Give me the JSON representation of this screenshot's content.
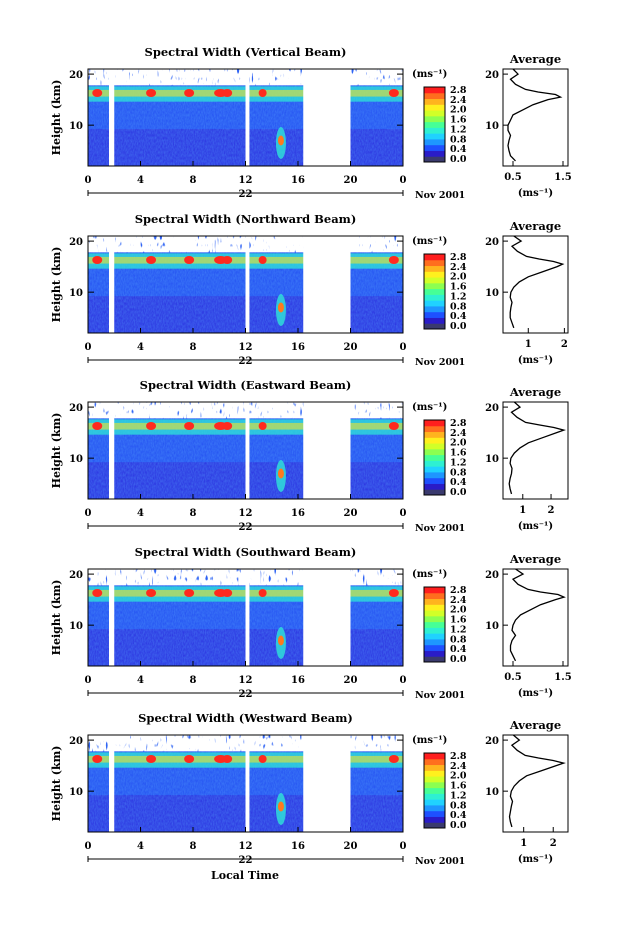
{
  "chart_data": {
    "type": "heatmap",
    "common": {
      "x_ticks": [
        "0",
        "4",
        "8",
        "12",
        "16",
        "20",
        "0"
      ],
      "x_range": [
        0,
        24
      ],
      "date_day": "22",
      "date_month_year": "Nov 2001",
      "xlabel": "Local Time",
      "ylabel": "Height (km)",
      "y_ticks": [
        "10",
        "20"
      ],
      "y_range": [
        2,
        21
      ],
      "colorbar_unit": "(ms⁻¹)",
      "colorbar_ticks": [
        "2.8",
        "2.4",
        "2.0",
        "1.6",
        "1.2",
        "0.8",
        "0.4",
        "0.0"
      ],
      "colorbar_colors": [
        "#3a3a6e",
        "#2a1cc8",
        "#1e50ff",
        "#1e96ff",
        "#20d2ff",
        "#2ef0d2",
        "#46ff96",
        "#8cff50",
        "#d2ff28",
        "#fff01e",
        "#ffb41e",
        "#ff6e1e",
        "#ff1e1e"
      ],
      "data_gaps_hours": [
        [
          1.6,
          2.0
        ],
        [
          12.0,
          12.3
        ],
        [
          16.4,
          20.0
        ]
      ],
      "avg_title": "Average",
      "avg_xlabel": "(ms⁻¹)",
      "avg_yticks": [
        "10",
        "20"
      ]
    },
    "panels": [
      {
        "title": "Spectral Width (Vertical Beam)",
        "avg_xticks": [
          {
            "v": 0.5,
            "label": "0.5"
          },
          {
            "v": 1.5,
            "label": "1.5"
          }
        ],
        "avg_xlim": [
          0.3,
          1.6
        ],
        "avg_profile": {
          "height_km": [
            3,
            4,
            5,
            6,
            7,
            8,
            9,
            10,
            11,
            12,
            13,
            14,
            15,
            15.5,
            16,
            16.5,
            17,
            18,
            19,
            20,
            21
          ],
          "width": [
            0.55,
            0.45,
            0.42,
            0.4,
            0.42,
            0.45,
            0.4,
            0.4,
            0.45,
            0.5,
            0.7,
            0.9,
            1.2,
            1.45,
            1.35,
            1.0,
            0.75,
            0.55,
            0.45,
            0.6,
            0.5
          ]
        }
      },
      {
        "title": "Spectral Width (Northward Beam)",
        "avg_xticks": [
          {
            "v": 1,
            "label": "1"
          },
          {
            "v": 2,
            "label": "2"
          }
        ],
        "avg_xlim": [
          0.3,
          2.1
        ],
        "avg_profile": {
          "height_km": [
            3,
            4,
            5,
            6,
            7,
            8,
            9,
            10,
            11,
            12,
            13,
            14,
            15,
            15.5,
            16,
            16.5,
            17,
            18,
            19,
            20,
            21
          ],
          "width": [
            0.6,
            0.55,
            0.5,
            0.5,
            0.52,
            0.55,
            0.5,
            0.52,
            0.6,
            0.75,
            1.0,
            1.4,
            1.8,
            1.95,
            1.7,
            1.3,
            0.95,
            0.7,
            0.55,
            0.8,
            0.6
          ]
        }
      },
      {
        "title": "Spectral Width (Eastward Beam)",
        "avg_xticks": [
          {
            "v": 1,
            "label": "1"
          },
          {
            "v": 2,
            "label": "2"
          }
        ],
        "avg_xlim": [
          0.3,
          2.6
        ],
        "avg_profile": {
          "height_km": [
            3,
            4,
            5,
            6,
            7,
            8,
            9,
            10,
            11,
            12,
            13,
            14,
            15,
            15.5,
            16,
            16.5,
            17,
            18,
            19,
            20,
            21
          ],
          "width": [
            0.6,
            0.55,
            0.52,
            0.55,
            0.6,
            0.62,
            0.55,
            0.58,
            0.7,
            0.9,
            1.2,
            1.7,
            2.2,
            2.45,
            2.1,
            1.6,
            1.1,
            0.8,
            0.6,
            0.9,
            0.7
          ]
        }
      },
      {
        "title": "Spectral Width (Southward Beam)",
        "avg_xticks": [
          {
            "v": 0.5,
            "label": "0.5"
          },
          {
            "v": 1.5,
            "label": "1.5"
          }
        ],
        "avg_xlim": [
          0.3,
          1.6
        ],
        "avg_profile": {
          "height_km": [
            3,
            4,
            5,
            6,
            7,
            8,
            9,
            10,
            11,
            12,
            13,
            14,
            15,
            15.5,
            16,
            16.5,
            17,
            18,
            19,
            20,
            21
          ],
          "width": [
            0.55,
            0.5,
            0.45,
            0.45,
            0.48,
            0.55,
            0.48,
            0.5,
            0.55,
            0.65,
            0.85,
            1.05,
            1.35,
            1.52,
            1.4,
            1.05,
            0.8,
            0.6,
            0.5,
            0.7,
            0.55
          ]
        }
      },
      {
        "title": "Spectral Width (Westward Beam)",
        "avg_xticks": [
          {
            "v": 1,
            "label": "1"
          },
          {
            "v": 2,
            "label": "2"
          }
        ],
        "avg_xlim": [
          0.3,
          2.5
        ],
        "avg_profile": {
          "height_km": [
            3,
            4,
            5,
            6,
            7,
            8,
            9,
            10,
            11,
            12,
            13,
            14,
            15,
            15.5,
            16,
            16.5,
            17,
            18,
            19,
            20,
            21
          ],
          "width": [
            0.6,
            0.55,
            0.52,
            0.55,
            0.58,
            0.62,
            0.55,
            0.58,
            0.68,
            0.85,
            1.1,
            1.6,
            2.1,
            2.35,
            2.0,
            1.5,
            1.05,
            0.78,
            0.6,
            0.85,
            0.65
          ]
        }
      }
    ]
  }
}
